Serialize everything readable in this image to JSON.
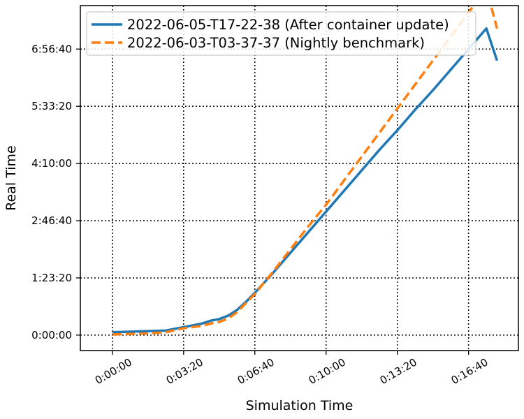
{
  "chart_data": {
    "type": "line",
    "title": "",
    "xlabel": "Simulation Time",
    "ylabel": "Real Time",
    "x_unit": "seconds",
    "y_unit": "seconds",
    "xlim": [
      -90,
      1140
    ],
    "ylim": [
      -1350,
      28800
    ],
    "x_ticks": [
      0,
      200,
      400,
      600,
      800,
      1000
    ],
    "x_tick_labels": [
      "0:00:00",
      "0:03:20",
      "0:06:40",
      "0:10:00",
      "0:13:20",
      "0:16:40"
    ],
    "y_ticks": [
      0,
      5000,
      10000,
      15000,
      20000,
      25000
    ],
    "y_tick_labels": [
      "0:00:00",
      "1:23:20",
      "2:46:40",
      "4:10:00",
      "5:33:20",
      "6:56:40"
    ],
    "grid": true,
    "legend_position": "top-left",
    "series": [
      {
        "name": "2022-06-05-T17-22-38 (After container update)",
        "color": "#1f77b4",
        "style": "solid",
        "x": [
          0,
          50,
          100,
          150,
          200,
          250,
          275,
          300,
          325,
          350,
          375,
          400,
          450,
          500,
          550,
          600,
          650,
          700,
          750,
          800,
          850,
          900,
          950,
          1000,
          1050,
          1080
        ],
        "y": [
          250,
          300,
          350,
          400,
          700,
          1000,
          1250,
          1400,
          1700,
          2200,
          2900,
          3700,
          5400,
          7200,
          9000,
          10800,
          12600,
          14400,
          16200,
          17900,
          19700,
          21400,
          23200,
          25000,
          26800,
          24000
        ]
      },
      {
        "name": "2022-06-03-T03-37-37 (Nightly benchmark)",
        "color": "#ff7f0e",
        "style": "dashed",
        "x": [
          0,
          50,
          100,
          150,
          200,
          250,
          275,
          300,
          325,
          350,
          375,
          400,
          450,
          500,
          550,
          600,
          650,
          700,
          750,
          800,
          850,
          900,
          950,
          1000,
          1050,
          1080
        ],
        "y": [
          50,
          100,
          150,
          250,
          600,
          800,
          1000,
          1150,
          1450,
          2000,
          2800,
          3600,
          5500,
          7500,
          9500,
          11400,
          13500,
          15600,
          17700,
          19800,
          21900,
          24000,
          26100,
          28200,
          30300,
          26800
        ]
      }
    ]
  }
}
